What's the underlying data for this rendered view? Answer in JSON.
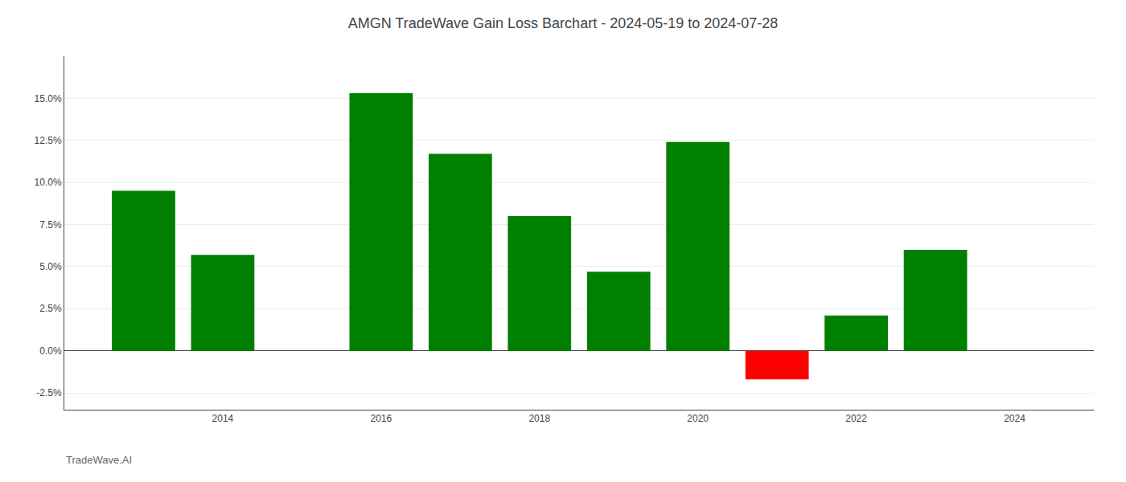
{
  "chart_data": {
    "type": "bar",
    "title": "AMGN TradeWave Gain Loss Barchart - 2024-05-19 to 2024-07-28",
    "annotations": [
      "TradeWave.AI"
    ],
    "x": [
      2013,
      2014,
      2016,
      2017,
      2018,
      2019,
      2020,
      2021,
      2022,
      2023
    ],
    "values": [
      0.095,
      0.057,
      0.153,
      0.117,
      0.08,
      0.047,
      0.124,
      -0.017,
      0.021,
      0.06
    ],
    "colors": [
      "#008000",
      "#008000",
      "#008000",
      "#008000",
      "#008000",
      "#008000",
      "#008000",
      "#ff0000",
      "#008000",
      "#008000"
    ],
    "xlim": [
      2012.0,
      2025.0
    ],
    "xticks": [
      2014,
      2016,
      2018,
      2020,
      2022,
      2024
    ],
    "ylim": [
      -0.035,
      0.175
    ],
    "yticks": [
      {
        "value": -0.025,
        "label": "-2.5%"
      },
      {
        "value": 0.0,
        "label": "0.0%"
      },
      {
        "value": 0.025,
        "label": "2.5%"
      },
      {
        "value": 0.05,
        "label": "5.0%"
      },
      {
        "value": 0.075,
        "label": "7.5%"
      },
      {
        "value": 0.1,
        "label": "10.0%"
      },
      {
        "value": 0.125,
        "label": "12.5%"
      },
      {
        "value": 0.15,
        "label": "15.0%"
      }
    ],
    "grid": true
  }
}
